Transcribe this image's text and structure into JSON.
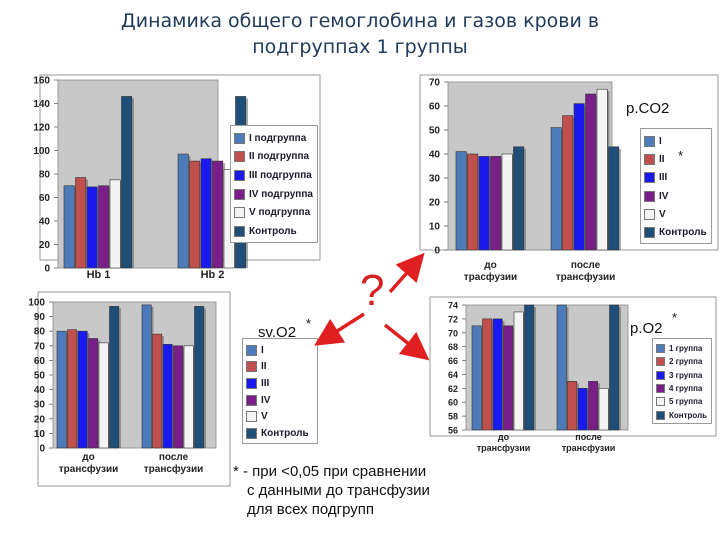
{
  "title_lines": [
    "Динамика общего гемоглобина и газов крови в",
    "подгруппах 1 группы"
  ],
  "colors": {
    "I": "#4d7ab8",
    "II": "#c0504d",
    "III": "#1a1aee",
    "IV": "#7a1f8a",
    "V": "#f4f4f4",
    "control": "#1f4e79",
    "arrow": "#e02020"
  },
  "question_mark": "?",
  "footnote_lines": [
    "* - при <0,05 при сравнении",
    "с данными до трансфузии",
    "для всех подгрупп"
  ],
  "chart_data": [
    {
      "id": "hb",
      "type": "bar",
      "title": "",
      "categories": [
        "Hb 1",
        "Hb 2"
      ],
      "ylim": [
        0,
        160
      ],
      "yticks": [
        "0",
        "20",
        "40",
        "60",
        "80",
        "100",
        "120",
        "140",
        "160"
      ],
      "annotation": "*",
      "legend": [
        "I подгруппа",
        "II подгруппа",
        "III подгруппа",
        "IV подгруппа",
        "V подгруппа",
        "Контроль"
      ],
      "series": [
        {
          "name": "I подгруппа",
          "color_key": "I",
          "values": [
            70,
            97
          ]
        },
        {
          "name": "II подгруппа",
          "color_key": "II",
          "values": [
            77,
            91
          ]
        },
        {
          "name": "III подгруппа",
          "color_key": "III",
          "values": [
            69,
            93
          ]
        },
        {
          "name": "IV подгруппа",
          "color_key": "IV",
          "values": [
            70,
            91
          ]
        },
        {
          "name": "V подгруппа",
          "color_key": "V",
          "values": [
            75,
            84
          ]
        },
        {
          "name": "Контроль",
          "color_key": "control",
          "values": [
            146,
            146
          ]
        }
      ]
    },
    {
      "id": "pco2",
      "type": "bar",
      "title": "p.CO2",
      "categories": [
        "до трасфузии",
        "после трансфузии"
      ],
      "ylim": [
        0,
        70
      ],
      "yticks": [
        "0",
        "10",
        "20",
        "30",
        "40",
        "50",
        "60",
        "70"
      ],
      "annotation": "*",
      "legend": [
        "I",
        "II",
        "III",
        "IV",
        "V",
        "Контроль"
      ],
      "series": [
        {
          "name": "I",
          "color_key": "I",
          "values": [
            41,
            51
          ]
        },
        {
          "name": "II",
          "color_key": "II",
          "values": [
            40,
            56
          ]
        },
        {
          "name": "III",
          "color_key": "III",
          "values": [
            39,
            61
          ]
        },
        {
          "name": "IV",
          "color_key": "IV",
          "values": [
            39,
            65
          ]
        },
        {
          "name": "V",
          "color_key": "V",
          "values": [
            40,
            67
          ]
        },
        {
          "name": "Контроль",
          "color_key": "control",
          "values": [
            43,
            43
          ]
        }
      ]
    },
    {
      "id": "svo2",
      "type": "bar",
      "title": "sv.O2",
      "categories": [
        "до трансфузии",
        "после трансфузии"
      ],
      "ylim": [
        0,
        100
      ],
      "yticks": [
        "0",
        "10",
        "20",
        "30",
        "40",
        "50",
        "60",
        "70",
        "80",
        "90",
        "100"
      ],
      "annotation": "*",
      "legend": [
        "I",
        "II",
        "III",
        "IV",
        "V",
        "Контроль"
      ],
      "series": [
        {
          "name": "I",
          "color_key": "I",
          "values": [
            80,
            98
          ]
        },
        {
          "name": "II",
          "color_key": "II",
          "values": [
            81,
            78
          ]
        },
        {
          "name": "III",
          "color_key": "III",
          "values": [
            80,
            71
          ]
        },
        {
          "name": "IV",
          "color_key": "IV",
          "values": [
            75,
            70
          ]
        },
        {
          "name": "V",
          "color_key": "V",
          "values": [
            72,
            70
          ]
        },
        {
          "name": "Контроль",
          "color_key": "control",
          "values": [
            97,
            97
          ]
        }
      ]
    },
    {
      "id": "po2",
      "type": "bar",
      "title": "p.O2",
      "categories": [
        "до трансфузии",
        "после трансфузии"
      ],
      "ylim": [
        56,
        74
      ],
      "yticks": [
        "56",
        "58",
        "60",
        "62",
        "64",
        "66",
        "68",
        "70",
        "72",
        "74"
      ],
      "annotation": "*",
      "legend": [
        "1 группа",
        "2 группа",
        "3 группа",
        "4 группа",
        "5 группа",
        "Контроль"
      ],
      "series": [
        {
          "name": "1 группа",
          "color_key": "I",
          "values": [
            71,
            74
          ]
        },
        {
          "name": "2 группа",
          "color_key": "II",
          "values": [
            72,
            63
          ]
        },
        {
          "name": "3 группа",
          "color_key": "III",
          "values": [
            72,
            62
          ]
        },
        {
          "name": "4 группа",
          "color_key": "IV",
          "values": [
            71,
            63
          ]
        },
        {
          "name": "5 группа",
          "color_key": "V",
          "values": [
            73,
            62
          ]
        },
        {
          "name": "Контроль",
          "color_key": "control",
          "values": [
            74,
            74
          ]
        }
      ]
    }
  ]
}
